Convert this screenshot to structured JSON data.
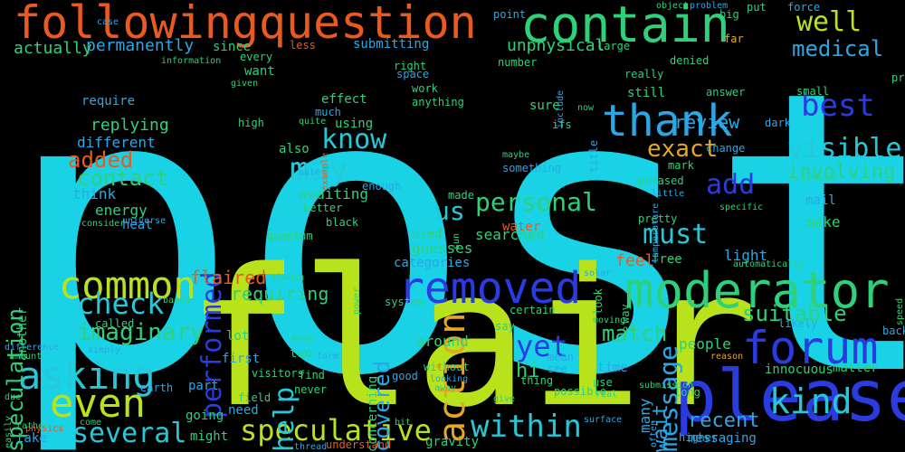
{
  "words": [
    {
      "text": "post",
      "color": "#19d2e6",
      "rot": 0
    },
    {
      "text": "flair",
      "color": "#b8e31c",
      "rot": 0
    },
    {
      "text": "please",
      "color": "#2a3be0",
      "rot": 0
    },
    {
      "text": "followingquestion",
      "color": "#ea5a1e",
      "rot": 0
    },
    {
      "text": "contain",
      "color": "#2ed17a",
      "rot": 0
    },
    {
      "text": "moderator",
      "color": "#2ed17a",
      "rot": 0
    },
    {
      "text": "removed",
      "color": "#2a3be0",
      "rot": 0
    },
    {
      "text": "forum",
      "color": "#2a3be0",
      "rot": 0
    },
    {
      "text": "thank",
      "color": "#2aa8e6",
      "rot": 0
    },
    {
      "text": "asking",
      "color": "#26c8d8",
      "rot": 0
    },
    {
      "text": "even",
      "color": "#b8e31c",
      "rot": 0
    },
    {
      "text": "common",
      "color": "#b8e31c",
      "rot": 0
    },
    {
      "text": "speculative",
      "color": "#b8e31c",
      "rot": 0
    },
    {
      "text": "several",
      "color": "#26c8d8",
      "rot": 0
    },
    {
      "text": "within",
      "color": "#26c8d8",
      "rot": 0
    },
    {
      "text": "kind",
      "color": "#26c8d8",
      "rot": 0
    },
    {
      "text": "must",
      "color": "#26c8d8",
      "rot": 0
    },
    {
      "text": "best",
      "color": "#2a3be0",
      "rot": 0
    },
    {
      "text": "well",
      "color": "#b8e31c",
      "rot": 0
    },
    {
      "text": "may",
      "color": "#26c8d8",
      "rot": 0
    },
    {
      "text": "know",
      "color": "#26c8d8",
      "rot": 0
    },
    {
      "text": "action",
      "color": "#e6a722",
      "rot": 90
    },
    {
      "text": "us",
      "color": "#26c8d8",
      "rot": 0
    },
    {
      "text": "add",
      "color": "#2a3be0",
      "rot": 0
    },
    {
      "text": "visible",
      "color": "#26c8d8",
      "rot": 0
    },
    {
      "text": "check",
      "color": "#26c8d8",
      "rot": 0
    },
    {
      "text": "yet",
      "color": "#2a3be0",
      "rot": 0
    },
    {
      "text": "performed",
      "color": "#2a3be0",
      "rot": 90
    },
    {
      "text": "help",
      "color": "#26c8d8",
      "rot": 90
    },
    {
      "text": "exact",
      "color": "#e6a722",
      "rot": 0
    },
    {
      "text": "personal",
      "color": "#2ed17a",
      "rot": 0
    },
    {
      "text": "medical",
      "color": "#2aa8e6",
      "rot": 0
    },
    {
      "text": "message",
      "color": "#2aa8e6",
      "rot": 90
    },
    {
      "text": "suitable",
      "color": "#2ed17a",
      "rot": 0
    },
    {
      "text": "imaginary",
      "color": "#2ed17a",
      "rot": 0
    },
    {
      "text": "covered",
      "color": "#2aa8e6",
      "rot": 90
    },
    {
      "text": "match",
      "color": "#2ed17a",
      "rot": 0
    },
    {
      "text": "recent",
      "color": "#2aa8e6",
      "rot": 0
    },
    {
      "text": "involving",
      "color": "#2ed17a",
      "rot": 0
    },
    {
      "text": "added",
      "color": "#ea5a1e",
      "rot": 0
    },
    {
      "text": "contact",
      "color": "#2ed17a",
      "rot": 0
    },
    {
      "text": "speculation",
      "color": "#2ed17a",
      "rot": 90
    },
    {
      "text": "review",
      "color": "#2aa8e6",
      "rot": 0
    },
    {
      "text": "requiring",
      "color": "#2ed17a",
      "rot": 0
    },
    {
      "text": "flaired",
      "color": "#ea5a1e",
      "rot": 0
    },
    {
      "text": "hi",
      "color": "#2ed17a",
      "rot": 0
    },
    {
      "text": "wait",
      "color": "#2aa8e6",
      "rot": 90
    },
    {
      "text": "permanently",
      "color": "#2aa8e6",
      "rot": 0
    },
    {
      "text": "actually",
      "color": "#2ed17a",
      "rot": 0
    },
    {
      "text": "submitting",
      "color": "#2aa8e6",
      "rot": 0
    },
    {
      "text": "unphysical",
      "color": "#2ed17a",
      "rot": 0
    },
    {
      "text": "replying",
      "color": "#2ed17a",
      "rot": 0
    },
    {
      "text": "different",
      "color": "#2aa8e6",
      "rot": 0
    },
    {
      "text": "think",
      "color": "#2aa8e6",
      "rot": 0
    },
    {
      "text": "energy",
      "color": "#2ed17a",
      "rot": 0
    },
    {
      "text": "heat",
      "color": "#2aa8e6",
      "rot": 0
    },
    {
      "text": "require",
      "color": "#2aa8e6",
      "rot": 0
    },
    {
      "text": "awaiting",
      "color": "#2ed17a",
      "rot": 0
    },
    {
      "text": "searched",
      "color": "#2ed17a",
      "rot": 0
    },
    {
      "text": "guesses",
      "color": "#2ed17a",
      "rot": 0
    },
    {
      "text": "categories",
      "color": "#2aa8e6",
      "rot": 0
    },
    {
      "text": "used",
      "color": "#2ed17a",
      "rot": 0
    },
    {
      "text": "feel",
      "color": "#ea5a1e",
      "rot": 0
    },
    {
      "text": "free",
      "color": "#2ed17a",
      "rot": 0
    },
    {
      "text": "light",
      "color": "#2aa8e6",
      "rot": 0
    },
    {
      "text": "make",
      "color": "#2ed17a",
      "rot": 0
    },
    {
      "text": "mail",
      "color": "#2aa8e6",
      "rot": 0
    },
    {
      "text": "pretty",
      "color": "#2ed17a",
      "rot": 0
    },
    {
      "text": "people",
      "color": "#2ed17a",
      "rot": 0
    },
    {
      "text": "innocuous",
      "color": "#2ed17a",
      "rot": 0
    },
    {
      "text": "matter",
      "color": "#2ed17a",
      "rot": 0
    },
    {
      "text": "time",
      "color": "#2aa8e6",
      "rot": 0
    },
    {
      "text": "messaging",
      "color": "#2aa8e6",
      "rot": 0
    },
    {
      "text": "two",
      "color": "#2ed17a",
      "rot": 0
    },
    {
      "text": "lot",
      "color": "#2ed17a",
      "rot": 0
    },
    {
      "text": "first",
      "color": "#2aa8e6",
      "rot": 0
    },
    {
      "text": "concerning",
      "color": "#2ed17a",
      "rot": 90
    },
    {
      "text": "around",
      "color": "#2ed17a",
      "rot": 0
    },
    {
      "text": "might",
      "color": "#2ed17a",
      "rot": 0
    },
    {
      "text": "need",
      "color": "#2aa8e6",
      "rot": 0
    },
    {
      "text": "going",
      "color": "#2ed17a",
      "rot": 0
    },
    {
      "text": "take",
      "color": "#2aa8e6",
      "rot": 0
    },
    {
      "text": "understand",
      "color": "#ea5a1e",
      "rot": 0
    },
    {
      "text": "gravity",
      "color": "#2ed17a",
      "rot": 0
    },
    {
      "text": "many",
      "color": "#2aa8e6",
      "rot": 90
    },
    {
      "text": "water",
      "color": "#ea5a1e",
      "rot": 0
    },
    {
      "text": "still",
      "color": "#2ed17a",
      "rot": 0
    },
    {
      "text": "really",
      "color": "#2ed17a",
      "rot": 0
    },
    {
      "text": "denied",
      "color": "#2ed17a",
      "rot": 0
    },
    {
      "text": "number",
      "color": "#2ed17a",
      "rot": 0
    },
    {
      "text": "every",
      "color": "#2ed17a",
      "rot": 0
    },
    {
      "text": "want",
      "color": "#2ed17a",
      "rot": 0
    },
    {
      "text": "since",
      "color": "#2ed17a",
      "rot": 0
    },
    {
      "text": "less",
      "color": "#ea5a1e",
      "rot": 0
    },
    {
      "text": "right",
      "color": "#2ed17a",
      "rot": 0
    },
    {
      "text": "space",
      "color": "#2aa8e6",
      "rot": 0
    },
    {
      "text": "work",
      "color": "#2ed17a",
      "rot": 0
    },
    {
      "text": "anything",
      "color": "#2ed17a",
      "rot": 0
    },
    {
      "text": "using",
      "color": "#2ed17a",
      "rot": 0
    },
    {
      "text": "effect",
      "color": "#2ed17a",
      "rot": 0
    },
    {
      "text": "much",
      "color": "#2aa8e6",
      "rot": 0
    },
    {
      "text": "also",
      "color": "#2ed17a",
      "rot": 0
    },
    {
      "text": "better",
      "color": "#2ed17a",
      "rot": 0
    },
    {
      "text": "black",
      "color": "#2ed17a",
      "rot": 0
    },
    {
      "text": "enough",
      "color": "#2aa8e6",
      "rot": 0
    },
    {
      "text": "sure",
      "color": "#2ed17a",
      "rot": 0
    },
    {
      "text": "now",
      "color": "#2ed17a",
      "rot": 0
    },
    {
      "text": "ifs",
      "color": "#2ed17a",
      "rot": 0
    },
    {
      "text": "mark",
      "color": "#2ed17a",
      "rot": 0
    },
    {
      "text": "phrased",
      "color": "#2ed17a",
      "rot": 0
    },
    {
      "text": "something",
      "color": "#2aa8e6",
      "rot": 0
    },
    {
      "text": "answer",
      "color": "#2ed17a",
      "rot": 0
    },
    {
      "text": "change",
      "color": "#2aa8e6",
      "rot": 0
    },
    {
      "text": "small",
      "color": "#2ed17a",
      "rot": 0
    },
    {
      "text": "dark",
      "color": "#2aa8e6",
      "rot": 0
    },
    {
      "text": "similar",
      "color": "#2ed17a",
      "rot": 0
    },
    {
      "text": "automatically",
      "color": "#2ed17a",
      "rot": 0
    },
    {
      "text": "system",
      "color": "#2ed17a",
      "rot": 0
    },
    {
      "text": "certain",
      "color": "#2ed17a",
      "rot": 0
    },
    {
      "text": "say",
      "color": "#2ed17a",
      "rot": 0
    },
    {
      "text": "without",
      "color": "#2ed17a",
      "rot": 0
    },
    {
      "text": "good",
      "color": "#2aa8e6",
      "rot": 0
    },
    {
      "text": "look",
      "color": "#2ed17a",
      "rot": 90
    },
    {
      "text": "way",
      "color": "#2ed17a",
      "rot": 90
    },
    {
      "text": "go",
      "color": "#2ed17a",
      "rot": 0
    },
    {
      "text": "use",
      "color": "#2ed17a",
      "rot": 0
    },
    {
      "text": "thing",
      "color": "#2ed17a",
      "rot": 0
    },
    {
      "text": "possible",
      "color": "#2ed17a",
      "rot": 0
    },
    {
      "text": "long",
      "color": "#2ed17a",
      "rot": 0
    },
    {
      "text": "see",
      "color": "#2aa8e6",
      "rot": 0
    },
    {
      "text": "mean",
      "color": "#2aa8e6",
      "rot": 0
    },
    {
      "text": "earth",
      "color": "#2aa8e6",
      "rot": 0
    },
    {
      "text": "called",
      "color": "#2ed17a",
      "rot": 0
    },
    {
      "text": "field",
      "color": "#2ed17a",
      "rot": 0
    },
    {
      "text": "never",
      "color": "#2ed17a",
      "rot": 0
    },
    {
      "text": "find",
      "color": "#2ed17a",
      "rot": 0
    },
    {
      "text": "visitors",
      "color": "#2ed17a",
      "rot": 0
    },
    {
      "text": "part",
      "color": "#2aa8e6",
      "rot": 0
    },
    {
      "text": "higher",
      "color": "#2aa8e6",
      "rot": 0
    },
    {
      "text": "likely",
      "color": "#2aa8e6",
      "rot": 0
    },
    {
      "text": "another",
      "color": "#2ed17a",
      "rot": 90
    },
    {
      "text": "due",
      "color": "#2ed17a",
      "rot": 0
    },
    {
      "text": "amount",
      "color": "#2ed17a",
      "rot": 0
    },
    {
      "text": "easily",
      "color": "#2ed17a",
      "rot": 90
    },
    {
      "text": "quantum",
      "color": "#2ed17a",
      "rot": 0
    },
    {
      "text": "universe",
      "color": "#2aa8e6",
      "rot": 0
    },
    {
      "text": "point",
      "color": "#2aa8e6",
      "rot": 0
    },
    {
      "text": "big",
      "color": "#2ed17a",
      "rot": 0
    },
    {
      "text": "put",
      "color": "#2ed17a",
      "rot": 0
    },
    {
      "text": "far",
      "color": "#e6a722",
      "rot": 0
    },
    {
      "text": "large",
      "color": "#2ed17a",
      "rot": 0
    },
    {
      "text": "force",
      "color": "#2aa8e6",
      "rot": 0
    },
    {
      "text": "back",
      "color": "#2aa8e6",
      "rot": 0
    },
    {
      "text": "high",
      "color": "#2ed17a",
      "rot": 0
    },
    {
      "text": "probably",
      "color": "#2ed17a",
      "rot": 0
    },
    {
      "text": "speed",
      "color": "#2ed17a",
      "rot": 90
    },
    {
      "text": "include",
      "color": "#2aa8e6",
      "rot": 90
    },
    {
      "text": "title",
      "color": "#2aa8e6",
      "rot": 90
    },
    {
      "text": "temperature",
      "color": "#2aa8e6",
      "rot": 90
    },
    {
      "text": "specific",
      "color": "#2ed17a",
      "rot": 0
    },
    {
      "text": "little",
      "color": "#2aa8e6",
      "rot": 0
    },
    {
      "text": "made",
      "color": "#2ed17a",
      "rot": 0
    },
    {
      "text": "maybe",
      "color": "#2ed17a",
      "rot": 0
    },
    {
      "text": "able",
      "color": "#2aa8e6",
      "rot": 0
    },
    {
      "text": "example",
      "color": "#ea5a1e",
      "rot": 90
    },
    {
      "text": "quite",
      "color": "#2ed17a",
      "rot": 0
    },
    {
      "text": "given",
      "color": "#2ed17a",
      "rot": 0
    },
    {
      "text": "information",
      "color": "#2ed17a",
      "rot": 0
    },
    {
      "text": "case",
      "color": "#2aa8e6",
      "rot": 0
    },
    {
      "text": "object",
      "color": "#2ed17a",
      "rot": 0
    },
    {
      "text": "problem",
      "color": "#2aa8e6",
      "rot": 0
    },
    {
      "text": "sun",
      "color": "#2ed17a",
      "rot": 90
    },
    {
      "text": "consider",
      "color": "#2ed17a",
      "rot": 0
    },
    {
      "text": "solar",
      "color": "#2aa8e6",
      "rot": 0
    },
    {
      "text": "move",
      "color": "#2ed17a",
      "rot": 0
    },
    {
      "text": "form",
      "color": "#2aa8e6",
      "rot": 0
    },
    {
      "text": "based",
      "color": "#2ed17a",
      "rot": 0
    },
    {
      "text": "power",
      "color": "#2ed17a",
      "rot": 90
    },
    {
      "text": "moving",
      "color": "#2ed17a",
      "rot": 0
    },
    {
      "text": "looking",
      "color": "#2aa8e6",
      "rot": 0
    },
    {
      "text": "away",
      "color": "#2ed17a",
      "rot": 0
    },
    {
      "text": "submission",
      "color": "#2ed17a",
      "rot": 0
    },
    {
      "text": "reason",
      "color": "#e6a722",
      "rot": 0
    },
    {
      "text": "real",
      "color": "#2ed17a",
      "rot": 0
    },
    {
      "text": "surface",
      "color": "#2aa8e6",
      "rot": 0
    },
    {
      "text": "bit",
      "color": "#2ed17a",
      "rot": 0
    },
    {
      "text": "give",
      "color": "#2ed17a",
      "rot": 0
    },
    {
      "text": "thread",
      "color": "#2aa8e6",
      "rot": 0
    },
    {
      "text": "often",
      "color": "#2aa8e6",
      "rot": 90
    },
    {
      "text": "physics",
      "color": "#ea5a1e",
      "rot": 0
    },
    {
      "text": "rather",
      "color": "#2ed17a",
      "rot": 0
    },
    {
      "text": "come",
      "color": "#2ed17a",
      "rot": 0
    },
    {
      "text": "simply",
      "color": "#2aa8e6",
      "rot": 0
    },
    {
      "text": "though",
      "color": "#2ed17a",
      "rot": 0
    },
    {
      "text": "difference",
      "color": "#2aa8e6",
      "rot": 0
    },
    {
      "text": "per",
      "color": "#2aa8e6",
      "rot": 0
    },
    {
      "text": "new",
      "color": "#2ed17a",
      "rot": 0
    },
    {
      "text": "body",
      "color": "#2ed17a",
      "rot": 0
    }
  ]
}
